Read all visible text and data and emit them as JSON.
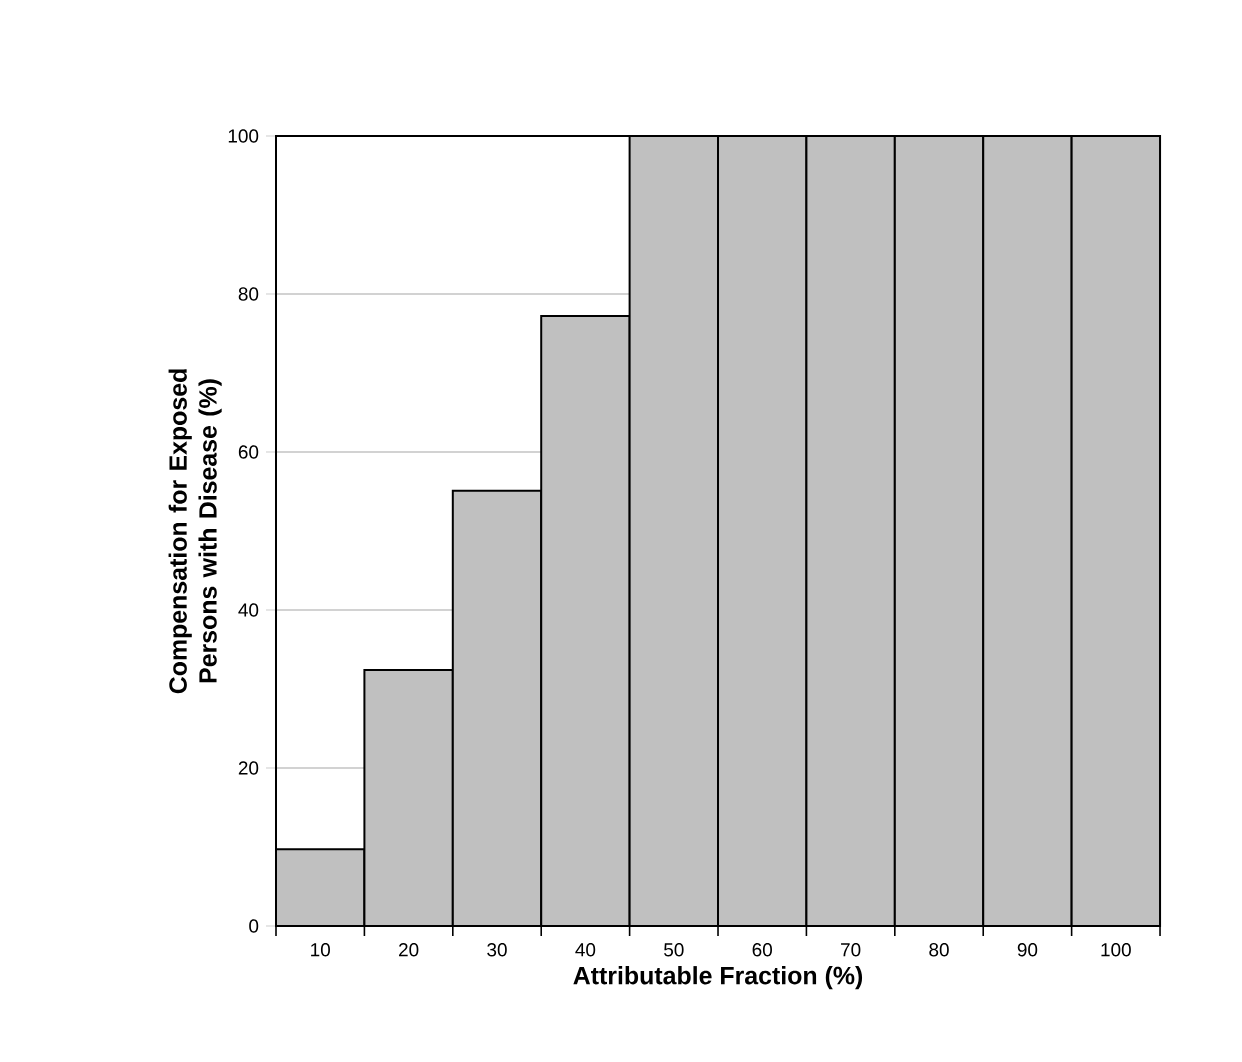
{
  "chart_data": {
    "type": "bar",
    "xlabel": "Attributable Fraction (%)",
    "ylabel": "Compensation for Exposed Persons with Disease (%)",
    "categories": [
      "10",
      "20",
      "30",
      "40",
      "50",
      "60",
      "70",
      "80",
      "90",
      "100"
    ],
    "values": [
      9.7,
      32.4,
      55.1,
      77.2,
      100,
      100,
      100,
      100,
      100,
      100
    ],
    "color": "#c0c0c0",
    "ylim": [
      0,
      100
    ],
    "yticks": [
      0,
      20,
      40,
      60,
      80,
      100
    ],
    "grid": "y"
  }
}
